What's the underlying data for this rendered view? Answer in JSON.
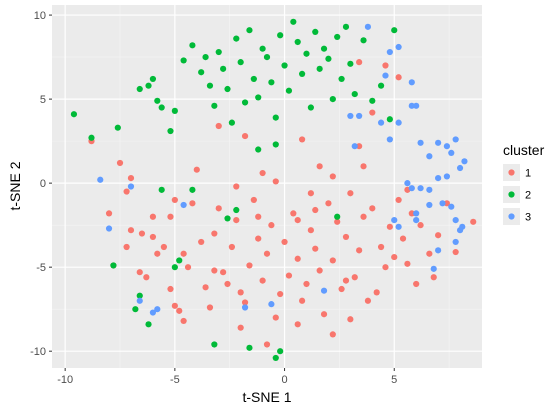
{
  "chart_data": {
    "type": "scatter",
    "xlabel": "t-SNE 1",
    "ylabel": "t-SNE 2",
    "xlim": [
      -10.6,
      9.0
    ],
    "ylim": [
      -11.0,
      10.6
    ],
    "xticks": [
      -10,
      -5,
      0,
      5
    ],
    "yticks": [
      -10,
      -5,
      0,
      5,
      10
    ],
    "grid": true,
    "legend": {
      "title": "cluster",
      "position": "right"
    },
    "series": [
      {
        "name": "1",
        "color": "#F8766D",
        "points": [
          [
            -8.8,
            2.5
          ],
          [
            -7.5,
            1.2
          ],
          [
            -7.2,
            -0.5
          ],
          [
            -7.0,
            0.3
          ],
          [
            -8.0,
            -1.8
          ],
          [
            -7.8,
            -4.9
          ],
          [
            -7.2,
            -3.8
          ],
          [
            -7.0,
            -2.8
          ],
          [
            -6.5,
            -3.0
          ],
          [
            -6.6,
            -5.3
          ],
          [
            -6.3,
            -5.6
          ],
          [
            -6.0,
            -2.0
          ],
          [
            -6.0,
            -3.2
          ],
          [
            -5.8,
            -4.2
          ],
          [
            -5.5,
            -3.8
          ],
          [
            -5.2,
            -2.0
          ],
          [
            -5.0,
            -1.0
          ],
          [
            -5.2,
            -6.3
          ],
          [
            -5.0,
            -7.3
          ],
          [
            -4.8,
            -7.6
          ],
          [
            -4.6,
            -8.2
          ],
          [
            -4.4,
            -5.0
          ],
          [
            -4.2,
            -1.2
          ],
          [
            -4.0,
            0.8
          ],
          [
            -3.8,
            -3.5
          ],
          [
            -3.6,
            -6.2
          ],
          [
            -3.4,
            -7.4
          ],
          [
            -3.2,
            -3.0
          ],
          [
            -3.0,
            -1.5
          ],
          [
            -2.8,
            -5.3
          ],
          [
            -2.6,
            -6.0
          ],
          [
            -2.4,
            -3.8
          ],
          [
            -2.2,
            -2.2
          ],
          [
            -2.0,
            -6.5
          ],
          [
            -1.8,
            -7.1
          ],
          [
            -1.6,
            -4.9
          ],
          [
            -1.4,
            -1.0
          ],
          [
            -1.2,
            -3.3
          ],
          [
            -1.0,
            -5.8
          ],
          [
            -0.8,
            -4.2
          ],
          [
            -0.6,
            -2.5
          ],
          [
            -0.4,
            -8.0
          ],
          [
            -0.2,
            -6.6
          ],
          [
            0.0,
            -3.5
          ],
          [
            0.2,
            -5.5
          ],
          [
            0.4,
            -1.8
          ],
          [
            0.6,
            -4.5
          ],
          [
            0.8,
            -7.0
          ],
          [
            1.0,
            -6.0
          ],
          [
            1.2,
            -2.8
          ],
          [
            1.4,
            -3.9
          ],
          [
            1.6,
            -5.2
          ],
          [
            1.8,
            -7.8
          ],
          [
            2.0,
            -1.2
          ],
          [
            2.2,
            -4.6
          ],
          [
            2.4,
            -2.3
          ],
          [
            2.6,
            -6.3
          ],
          [
            2.8,
            -3.2
          ],
          [
            3.0,
            -0.6
          ],
          [
            3.2,
            -5.6
          ],
          [
            3.4,
            -4.0
          ],
          [
            3.6,
            -2.0
          ],
          [
            3.8,
            -7.0
          ],
          [
            4.0,
            -1.5
          ],
          [
            4.2,
            -6.5
          ],
          [
            4.4,
            -3.8
          ],
          [
            4.6,
            -5.0
          ],
          [
            4.8,
            -2.6
          ],
          [
            5.0,
            -4.4
          ],
          [
            5.2,
            -1.0
          ],
          [
            5.4,
            -3.3
          ],
          [
            5.6,
            -4.8
          ],
          [
            5.8,
            -1.8
          ],
          [
            6.0,
            -6.0
          ],
          [
            6.2,
            -2.5
          ],
          [
            6.6,
            -4.2
          ],
          [
            7.0,
            -3.1
          ],
          [
            7.4,
            -1.2
          ],
          [
            7.8,
            -4.1
          ],
          [
            8.6,
            -2.3
          ],
          [
            -2.2,
            -0.2
          ],
          [
            -1.0,
            0.6
          ],
          [
            0.8,
            2.6
          ],
          [
            1.6,
            1.0
          ],
          [
            2.2,
            0.4
          ],
          [
            3.4,
            2.2
          ],
          [
            4.0,
            4.2
          ],
          [
            3.6,
            1.0
          ],
          [
            -1.8,
            2.8
          ],
          [
            -3.0,
            3.4
          ],
          [
            5.2,
            6.3
          ],
          [
            3.4,
            7.2
          ],
          [
            -1.2,
            -2.0
          ],
          [
            1.2,
            -0.6
          ],
          [
            0.6,
            -8.4
          ],
          [
            -0.8,
            -9.6
          ],
          [
            2.2,
            -9.0
          ],
          [
            3.0,
            -8.1
          ],
          [
            -2.0,
            -8.6
          ],
          [
            5.6,
            -0.4
          ],
          [
            4.6,
            7.0
          ],
          [
            1.4,
            -1.6
          ],
          [
            -0.4,
            0.1
          ],
          [
            0.6,
            -2.2
          ],
          [
            2.8,
            -5.8
          ],
          [
            6.8,
            -5.6
          ],
          [
            -4.6,
            -4.2
          ],
          [
            -3.2,
            -5.2
          ]
        ]
      },
      {
        "name": "2",
        "color": "#00BA38",
        "points": [
          [
            -9.6,
            4.1
          ],
          [
            -8.8,
            2.7
          ],
          [
            -7.6,
            3.3
          ],
          [
            -6.6,
            5.6
          ],
          [
            -6.2,
            5.8
          ],
          [
            -6.0,
            6.2
          ],
          [
            -5.8,
            4.9
          ],
          [
            -5.6,
            4.5
          ],
          [
            -5.2,
            3.1
          ],
          [
            -5.0,
            4.3
          ],
          [
            -4.6,
            7.3
          ],
          [
            -4.2,
            8.2
          ],
          [
            -3.8,
            6.6
          ],
          [
            -3.6,
            7.5
          ],
          [
            -3.4,
            5.8
          ],
          [
            -3.2,
            4.6
          ],
          [
            -3.0,
            7.8
          ],
          [
            -2.8,
            6.8
          ],
          [
            -2.6,
            5.6
          ],
          [
            -2.4,
            3.6
          ],
          [
            -2.2,
            8.6
          ],
          [
            -2.0,
            7.2
          ],
          [
            -1.8,
            4.8
          ],
          [
            -1.6,
            9.1
          ],
          [
            -1.4,
            6.2
          ],
          [
            -1.2,
            5.1
          ],
          [
            -1.0,
            8.0
          ],
          [
            -0.8,
            7.5
          ],
          [
            -0.6,
            6.0
          ],
          [
            -0.4,
            3.9
          ],
          [
            -0.2,
            8.8
          ],
          [
            0.0,
            7.0
          ],
          [
            0.2,
            5.5
          ],
          [
            0.4,
            9.6
          ],
          [
            0.6,
            8.4
          ],
          [
            0.8,
            6.5
          ],
          [
            1.0,
            7.7
          ],
          [
            1.2,
            4.5
          ],
          [
            1.4,
            9.0
          ],
          [
            1.6,
            6.8
          ],
          [
            1.8,
            8.0
          ],
          [
            2.0,
            7.4
          ],
          [
            2.2,
            5.0
          ],
          [
            2.4,
            8.7
          ],
          [
            2.6,
            6.2
          ],
          [
            2.8,
            9.3
          ],
          [
            3.0,
            7.1
          ],
          [
            3.2,
            5.3
          ],
          [
            3.6,
            8.5
          ],
          [
            4.0,
            4.9
          ],
          [
            4.4,
            5.8
          ],
          [
            4.8,
            3.8
          ],
          [
            5.0,
            9.1
          ],
          [
            -0.4,
            2.3
          ],
          [
            -1.2,
            2.0
          ],
          [
            -2.2,
            -1.6
          ],
          [
            -2.6,
            -2.1
          ],
          [
            -4.2,
            -0.4
          ],
          [
            -5.6,
            -0.4
          ],
          [
            -6.8,
            -7.5
          ],
          [
            -6.6,
            -6.7
          ],
          [
            -6.2,
            -8.4
          ],
          [
            -5.0,
            -5.0
          ],
          [
            -3.2,
            -9.6
          ],
          [
            -1.6,
            -9.8
          ],
          [
            -0.4,
            -10.4
          ],
          [
            -0.2,
            -10.0
          ],
          [
            2.4,
            -2.0
          ],
          [
            -7.8,
            -4.9
          ],
          [
            -4.8,
            -4.6
          ]
        ]
      },
      {
        "name": "3",
        "color": "#619CFF",
        "points": [
          [
            3.8,
            9.3
          ],
          [
            4.8,
            7.8
          ],
          [
            5.2,
            8.1
          ],
          [
            4.6,
            6.4
          ],
          [
            5.8,
            4.6
          ],
          [
            6.0,
            4.6
          ],
          [
            5.2,
            3.6
          ],
          [
            4.4,
            3.6
          ],
          [
            4.8,
            2.6
          ],
          [
            6.2,
            2.4
          ],
          [
            6.6,
            1.6
          ],
          [
            7.0,
            2.4
          ],
          [
            7.4,
            2.2
          ],
          [
            7.6,
            1.8
          ],
          [
            7.8,
            2.6
          ],
          [
            8.2,
            1.3
          ],
          [
            8.0,
            0.9
          ],
          [
            7.4,
            0.4
          ],
          [
            7.0,
            0.3
          ],
          [
            6.6,
            -0.4
          ],
          [
            6.2,
            -0.3
          ],
          [
            5.8,
            -0.3
          ],
          [
            6.6,
            -1.3
          ],
          [
            7.2,
            -1.2
          ],
          [
            7.6,
            -1.4
          ],
          [
            7.8,
            -2.2
          ],
          [
            8.0,
            -2.8
          ],
          [
            7.8,
            -3.5
          ],
          [
            7.0,
            -4.0
          ],
          [
            6.8,
            -5.1
          ],
          [
            6.0,
            -2.2
          ],
          [
            5.2,
            -2.6
          ],
          [
            5.0,
            -2.2
          ],
          [
            5.6,
            0.0
          ],
          [
            3.0,
            4.0
          ],
          [
            3.4,
            4.0
          ],
          [
            -8.4,
            0.2
          ],
          [
            -8.0,
            -2.7
          ],
          [
            -7.0,
            -0.2
          ],
          [
            -6.0,
            -7.7
          ],
          [
            -6.6,
            -7.0
          ],
          [
            -5.8,
            -7.5
          ],
          [
            -1.8,
            -7.4
          ],
          [
            -0.6,
            -7.2
          ],
          [
            -4.6,
            -1.3
          ],
          [
            1.8,
            -6.4
          ],
          [
            8.1,
            -2.6
          ],
          [
            5.8,
            6.0
          ],
          [
            6.0,
            -1.8
          ],
          [
            3.2,
            2.2
          ]
        ]
      }
    ]
  }
}
